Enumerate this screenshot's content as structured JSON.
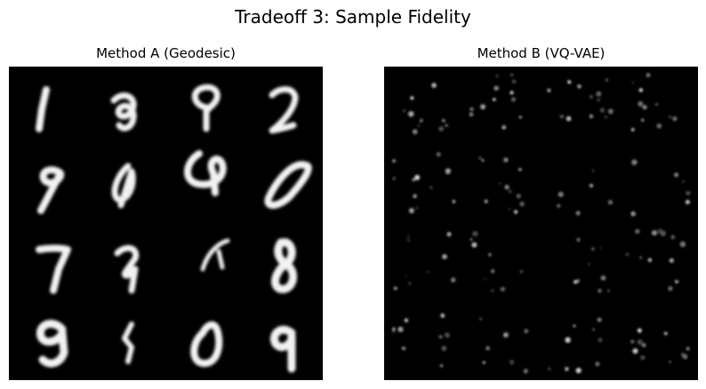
{
  "figure": {
    "title": "Tradeoff 3: Sample Fidelity"
  },
  "panels": [
    {
      "title": "Method A (Geodesic)"
    },
    {
      "title": "Method B (VQ-VAE)"
    }
  ]
}
